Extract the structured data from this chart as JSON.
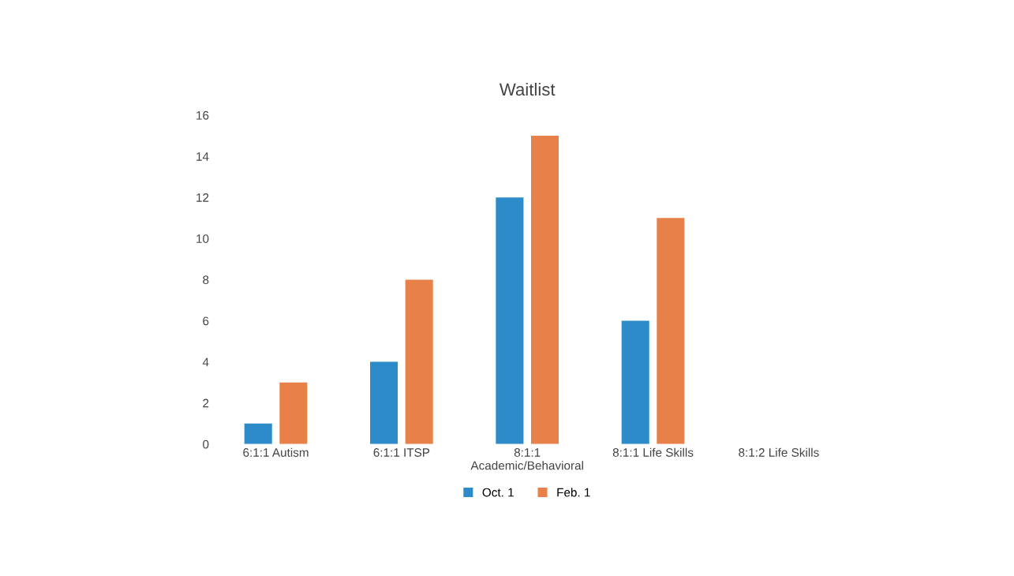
{
  "chart_data": {
    "type": "bar",
    "title": "Waitlist",
    "categories": [
      "6:1:1 Autism",
      "6:1:1 ITSP",
      "8:1:1\nAcademic/Behavioral",
      "8:1:1 Life Skills",
      "8:1:2 Life Skills"
    ],
    "series": [
      {
        "name": "Oct. 1",
        "color": "#2e8bc9",
        "values": [
          1,
          4,
          12,
          6,
          0
        ]
      },
      {
        "name": "Feb. 1",
        "color": "#e8804a",
        "values": [
          3,
          8,
          15,
          11,
          0
        ]
      }
    ],
    "ylim": [
      0,
      16
    ],
    "yticks": [
      0,
      2,
      4,
      6,
      8,
      10,
      12,
      14,
      16
    ],
    "grid": false,
    "legend": "bottom"
  }
}
